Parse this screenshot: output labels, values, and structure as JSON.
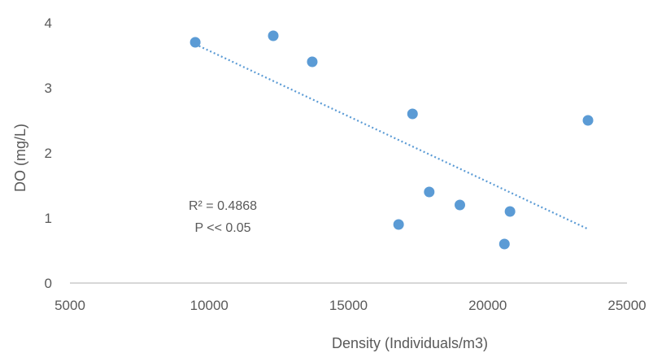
{
  "chart_data": {
    "type": "scatter",
    "xlabel": "Density (Individuals/m3)",
    "ylabel": "DO (mg/L)",
    "xlim": [
      5000,
      25000
    ],
    "ylim": [
      0,
      4
    ],
    "x_ticks": [
      5000,
      10000,
      15000,
      20000,
      25000
    ],
    "y_ticks": [
      0,
      1,
      2,
      3,
      4
    ],
    "x_tick_labels": [
      "5000",
      "10000",
      "15000",
      "20000",
      "25000"
    ],
    "y_tick_labels": [
      "0",
      "1",
      "2",
      "3",
      "4"
    ],
    "grid": false,
    "series": [
      {
        "x": [
          9500,
          12300,
          13700,
          17300,
          23600,
          16800,
          17900,
          19000,
          20800,
          20600
        ],
        "y": [
          3.7,
          3.8,
          3.4,
          2.6,
          2.5,
          0.9,
          1.4,
          1.2,
          1.1,
          0.6
        ],
        "color": "#5B9BD5"
      }
    ],
    "trendline": {
      "type": "linear",
      "x": [
        9500,
        23600
      ],
      "y": [
        3.67,
        0.83
      ],
      "color": "#5B9BD5",
      "style": "dotted"
    },
    "annotations": [
      "R² = 0.4868",
      "P << 0.05"
    ]
  }
}
